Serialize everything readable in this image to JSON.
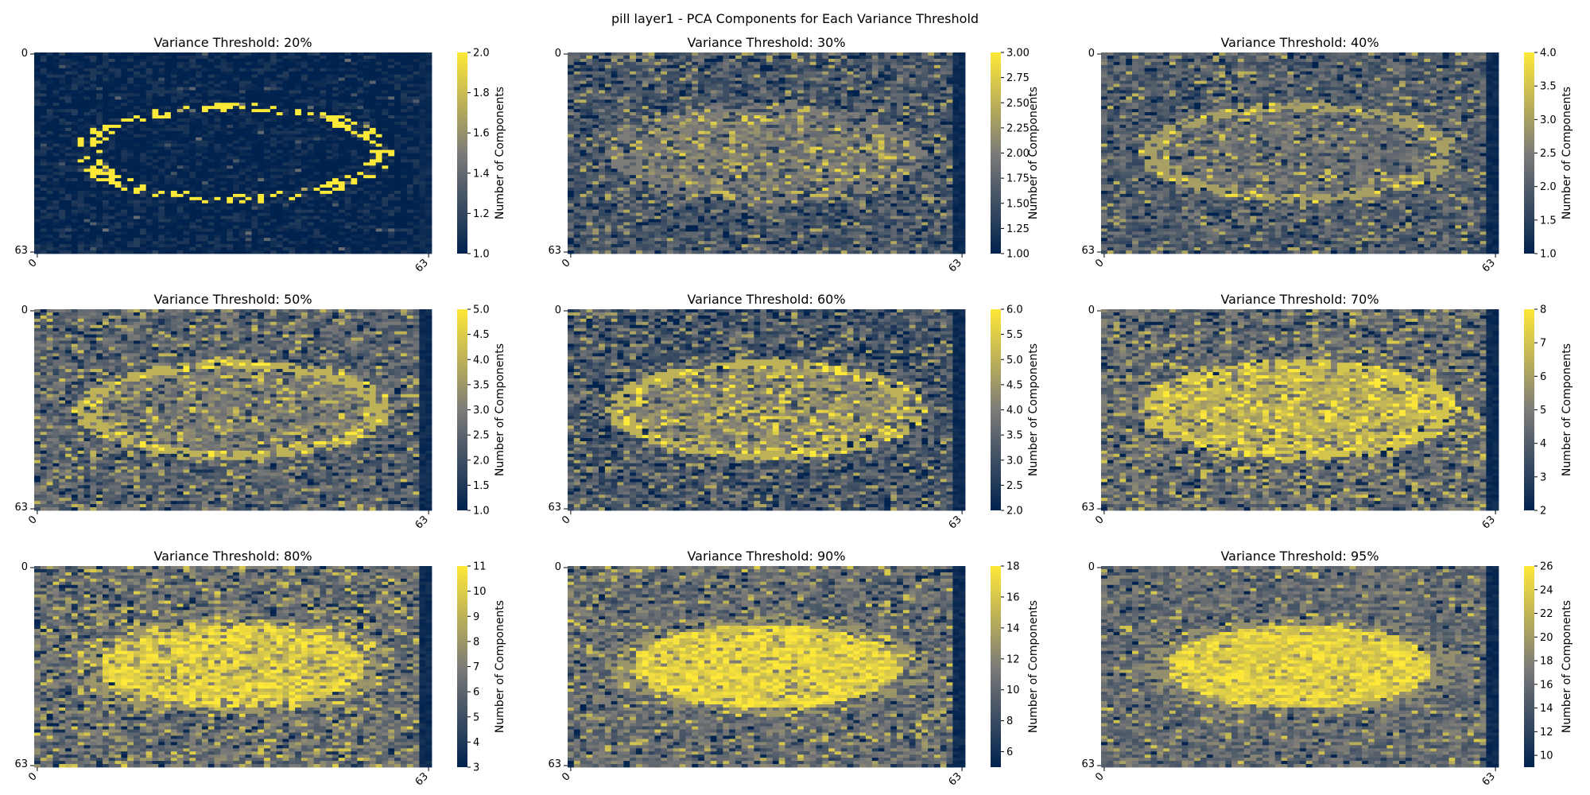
{
  "figure": {
    "title": "pill layer1 - PCA Components for Each Variance Threshold"
  },
  "colormap": {
    "name": "cividis",
    "low": "#00224e",
    "mid": "#7c7b78",
    "high": "#fee838"
  },
  "chart_data": [
    {
      "type": "heatmap",
      "title": "Variance Threshold: 20%",
      "grid_size": [
        64,
        64
      ],
      "x_ticks": [
        "0",
        "63"
      ],
      "y_ticks": [
        "0",
        "63"
      ],
      "colorbar": {
        "label": "Number of Components",
        "range": [
          1.0,
          2.0
        ],
        "ticks": [
          "1.0",
          "1.2",
          "1.4",
          "1.6",
          "1.8",
          "2.0"
        ]
      },
      "pattern": {
        "background": 1,
        "ellipse_ring": 2,
        "ring_continuity": 0.45,
        "inner_value": 1,
        "noise_fraction": 0.04
      }
    },
    {
      "type": "heatmap",
      "title": "Variance Threshold: 30%",
      "grid_size": [
        64,
        64
      ],
      "x_ticks": [
        "0",
        "63"
      ],
      "y_ticks": [
        "0",
        "63"
      ],
      "colorbar": {
        "label": "Number of Components",
        "range": [
          1.0,
          3.0
        ],
        "ticks": [
          "1.00",
          "1.25",
          "1.50",
          "1.75",
          "2.00",
          "2.25",
          "2.50",
          "2.75",
          "3.00"
        ]
      },
      "pattern": {
        "background": 1.6,
        "ellipse_ring": 2,
        "ring_continuity": 0.7,
        "inner_value": 2,
        "noise_fraction": 0.25
      }
    },
    {
      "type": "heatmap",
      "title": "Variance Threshold: 40%",
      "grid_size": [
        64,
        64
      ],
      "x_ticks": [
        "0",
        "63"
      ],
      "y_ticks": [
        "0",
        "63"
      ],
      "colorbar": {
        "label": "Number of Components",
        "range": [
          1.0,
          4.0
        ],
        "ticks": [
          "1.0",
          "1.5",
          "2.0",
          "2.5",
          "3.0",
          "3.5",
          "4.0"
        ]
      },
      "pattern": {
        "background": 2,
        "ellipse_ring": 3,
        "ring_continuity": 0.8,
        "inner_value": 2.3,
        "noise_fraction": 0.2
      }
    },
    {
      "type": "heatmap",
      "title": "Variance Threshold: 50%",
      "grid_size": [
        64,
        64
      ],
      "x_ticks": [
        "0",
        "63"
      ],
      "y_ticks": [
        "0",
        "63"
      ],
      "colorbar": {
        "label": "Number of Components",
        "range": [
          1.0,
          5.0
        ],
        "ticks": [
          "1.0",
          "1.5",
          "2.0",
          "2.5",
          "3.0",
          "3.5",
          "4.0",
          "4.5",
          "5.0"
        ]
      },
      "pattern": {
        "background": 2.5,
        "ellipse_ring": 4,
        "ring_continuity": 0.85,
        "inner_value": 3,
        "noise_fraction": 0.25
      }
    },
    {
      "type": "heatmap",
      "title": "Variance Threshold: 60%",
      "grid_size": [
        64,
        64
      ],
      "x_ticks": [
        "0",
        "63"
      ],
      "y_ticks": [
        "0",
        "63"
      ],
      "colorbar": {
        "label": "Number of Components",
        "range": [
          2.0,
          6.0
        ],
        "ticks": [
          "2.0",
          "2.5",
          "3.0",
          "3.5",
          "4.0",
          "4.5",
          "5.0",
          "5.5",
          "6.0"
        ]
      },
      "pattern": {
        "background": 3.2,
        "ellipse_ring": 5,
        "ring_continuity": 0.85,
        "inner_value": 4.3,
        "noise_fraction": 0.3
      }
    },
    {
      "type": "heatmap",
      "title": "Variance Threshold: 70%",
      "grid_size": [
        64,
        64
      ],
      "x_ticks": [
        "0",
        "63"
      ],
      "y_ticks": [
        "0",
        "63"
      ],
      "colorbar": {
        "label": "Number of Components",
        "range": [
          2,
          8
        ],
        "ticks": [
          "2",
          "3",
          "4",
          "5",
          "6",
          "7",
          "8"
        ]
      },
      "pattern": {
        "background": 4.5,
        "ellipse_ring": 7,
        "ring_continuity": 0.85,
        "inner_value": 6.5,
        "noise_fraction": 0.3
      }
    },
    {
      "type": "heatmap",
      "title": "Variance Threshold: 80%",
      "grid_size": [
        64,
        64
      ],
      "x_ticks": [
        "0",
        "63"
      ],
      "y_ticks": [
        "0",
        "63"
      ],
      "colorbar": {
        "label": "Number of Components",
        "range": [
          3,
          11
        ],
        "ticks": [
          "3",
          "4",
          "5",
          "6",
          "7",
          "8",
          "9",
          "10",
          "11"
        ]
      },
      "pattern": {
        "background": 6.5,
        "ellipse_ring": 8,
        "ring_continuity": 0.8,
        "inner_value": 9.8,
        "noise_fraction": 0.3
      }
    },
    {
      "type": "heatmap",
      "title": "Variance Threshold: 90%",
      "grid_size": [
        64,
        64
      ],
      "x_ticks": [
        "0",
        "63"
      ],
      "y_ticks": [
        "0",
        "63"
      ],
      "colorbar": {
        "label": "Number of Components",
        "range": [
          5,
          18
        ],
        "ticks": [
          "6",
          "8",
          "10",
          "12",
          "14",
          "16",
          "18"
        ]
      },
      "pattern": {
        "background": 10.5,
        "ellipse_ring": 13,
        "ring_continuity": 0.7,
        "inner_value": 16.5,
        "noise_fraction": 0.2
      }
    },
    {
      "type": "heatmap",
      "title": "Variance Threshold: 95%",
      "grid_size": [
        64,
        64
      ],
      "x_ticks": [
        "0",
        "63"
      ],
      "y_ticks": [
        "0",
        "63"
      ],
      "colorbar": {
        "label": "Number of Components",
        "range": [
          9,
          26
        ],
        "ticks": [
          "10",
          "12",
          "14",
          "16",
          "18",
          "20",
          "22",
          "24",
          "26"
        ]
      },
      "pattern": {
        "background": 16,
        "ellipse_ring": 19,
        "ring_continuity": 0.6,
        "inner_value": 24,
        "noise_fraction": 0.15
      }
    }
  ]
}
